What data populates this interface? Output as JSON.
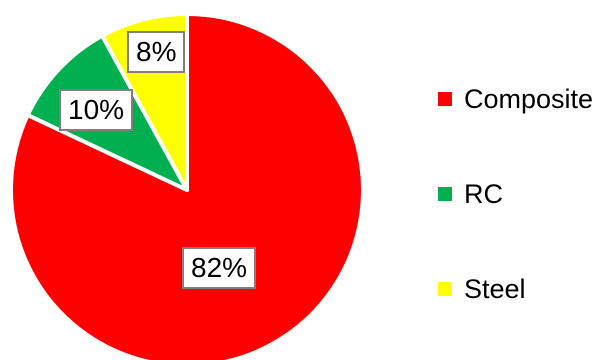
{
  "chart_data": {
    "type": "pie",
    "slices": [
      {
        "label": "Composite",
        "value": 82,
        "display": "82%",
        "color": "#ff0000"
      },
      {
        "label": "RC",
        "value": 10,
        "display": "10%",
        "color": "#00b050"
      },
      {
        "label": "Steel",
        "value": 8,
        "display": "8%",
        "color": "#ffff00"
      }
    ],
    "legend_placement": "right",
    "title": ""
  }
}
